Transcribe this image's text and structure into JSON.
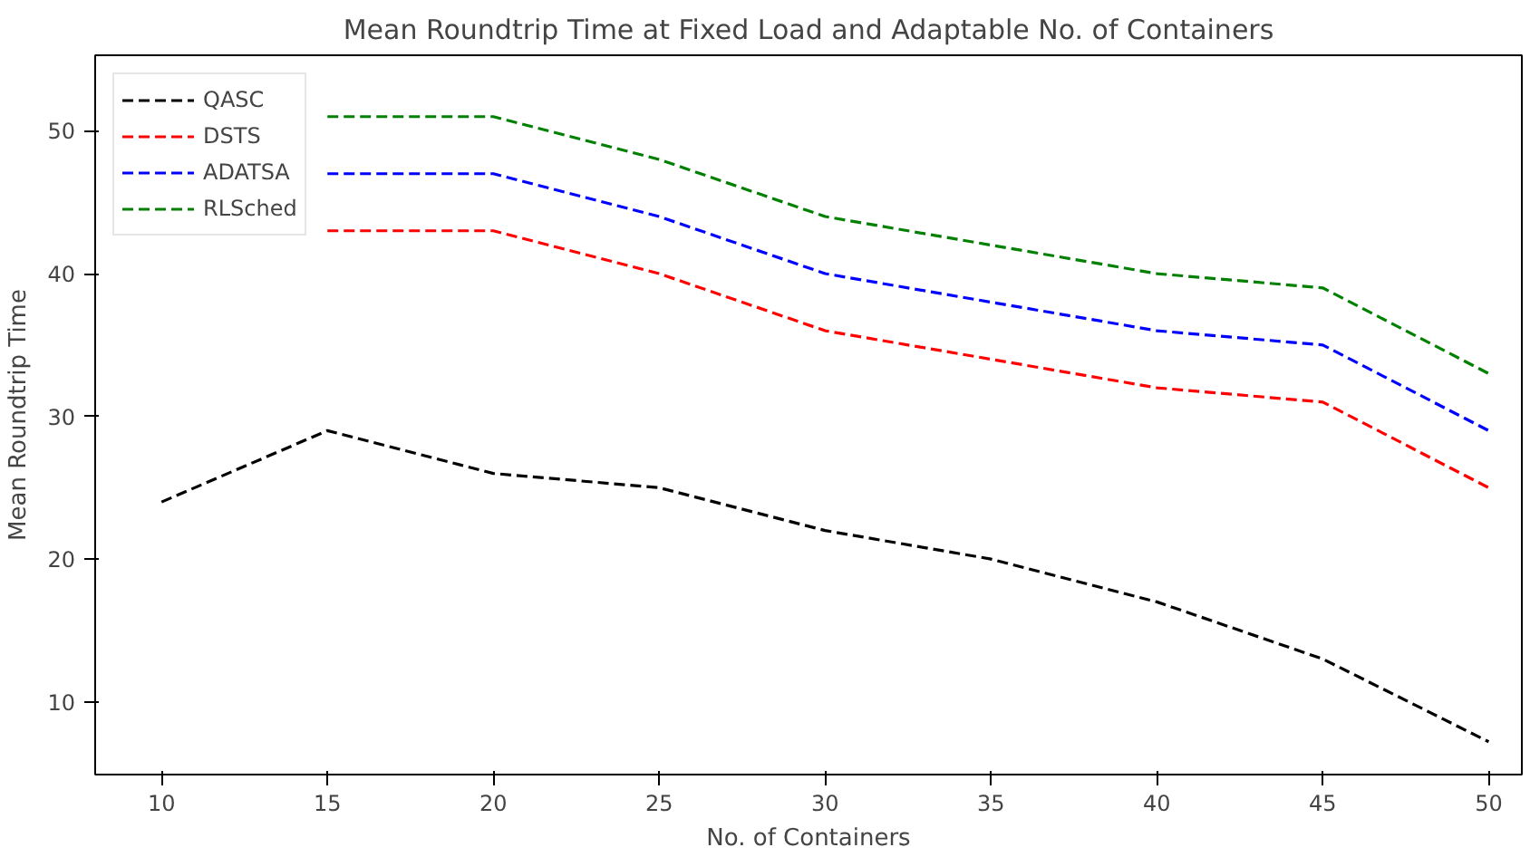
{
  "chart_data": {
    "type": "line",
    "title": "Mean Roundtrip Time at Fixed Load and Adaptable No. of Containers",
    "xlabel": "No. of Containers",
    "ylabel": "Mean Roundtrip Time",
    "x": [
      10,
      15,
      20,
      25,
      30,
      35,
      40,
      45,
      50
    ],
    "series": [
      {
        "name": "QASC",
        "color": "#000000",
        "values": [
          24,
          29,
          26,
          25,
          22,
          20,
          17,
          13,
          7.2
        ]
      },
      {
        "name": "DSTS",
        "color": "#ff0000",
        "values": [
          null,
          43,
          43,
          40,
          36,
          34,
          32,
          31,
          25
        ]
      },
      {
        "name": "ADATSA",
        "color": "#0000ff",
        "values": [
          null,
          47,
          47,
          44,
          40,
          38,
          36,
          35,
          29
        ]
      },
      {
        "name": "RLSched",
        "color": "#008000",
        "values": [
          null,
          51,
          51,
          48,
          44,
          42,
          40,
          39,
          33
        ]
      }
    ],
    "xlim": [
      8,
      51
    ],
    "ylim": [
      4.9,
      55.3
    ],
    "xticks": [
      10,
      15,
      20,
      25,
      30,
      35,
      40,
      45,
      50
    ],
    "yticks": [
      10,
      20,
      30,
      40,
      50
    ],
    "grid": false,
    "legend": "top left",
    "line_style": "dashed",
    "marker": "none"
  }
}
